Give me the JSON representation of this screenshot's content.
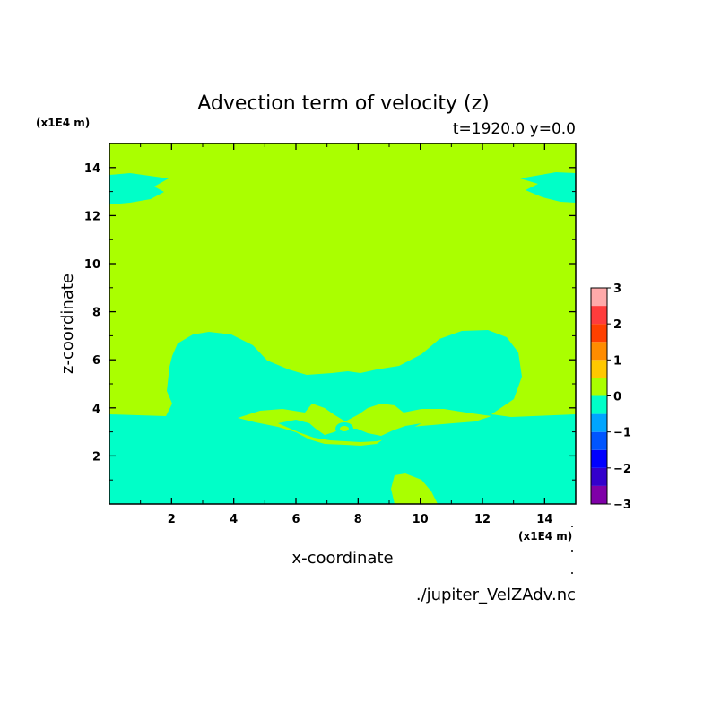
{
  "chart_data": {
    "type": "heatmap",
    "title": "Advection term of velocity (z)",
    "subtitle": "t=1920.0 y=0.0",
    "xlabel": "x-coordinate",
    "ylabel": "z-coordinate",
    "x_unit": "(x1E4 m)",
    "y_unit": "(x1E4 m)",
    "xlim": [
      0,
      15
    ],
    "ylim": [
      0,
      15
    ],
    "x_ticks": [
      2,
      4,
      6,
      8,
      10,
      12,
      14
    ],
    "y_ticks": [
      2,
      4,
      6,
      8,
      10,
      12,
      14
    ],
    "colorbar": {
      "ticks": [
        "3",
        "2",
        "1",
        "0",
        "−1",
        "−2",
        "−3"
      ],
      "levels": [
        {
          "from": -3.0,
          "to": -2.5,
          "color": "#7f00a8"
        },
        {
          "from": -2.5,
          "to": -2.0,
          "color": "#3300cc"
        },
        {
          "from": -2.0,
          "to": -1.5,
          "color": "#0000ff"
        },
        {
          "from": -1.5,
          "to": -1.0,
          "color": "#0055ff"
        },
        {
          "from": -1.0,
          "to": -0.5,
          "color": "#00a5ff"
        },
        {
          "from": -0.5,
          "to": 0.0,
          "color": "#00ffc8"
        },
        {
          "from": 0.0,
          "to": 0.5,
          "color": "#aaff00"
        },
        {
          "from": 0.5,
          "to": 1.0,
          "color": "#ffc800"
        },
        {
          "from": 1.0,
          "to": 1.5,
          "color": "#ff8c00"
        },
        {
          "from": 1.5,
          "to": 2.0,
          "color": "#ff4000"
        },
        {
          "from": 2.0,
          "to": 2.5,
          "color": "#ff3c3c"
        },
        {
          "from": 2.5,
          "to": 3.0,
          "color": "#ffaaaa"
        }
      ]
    },
    "regions": {
      "background_level": "0 to 0.5",
      "visible_levels": [
        "-0.5 to 0",
        "0 to 0.5"
      ]
    },
    "colors": {
      "positive_small": "#aaff00",
      "negative_small": "#00ffc8"
    },
    "source_file": "./jupiter_VelZAdv.nc"
  }
}
